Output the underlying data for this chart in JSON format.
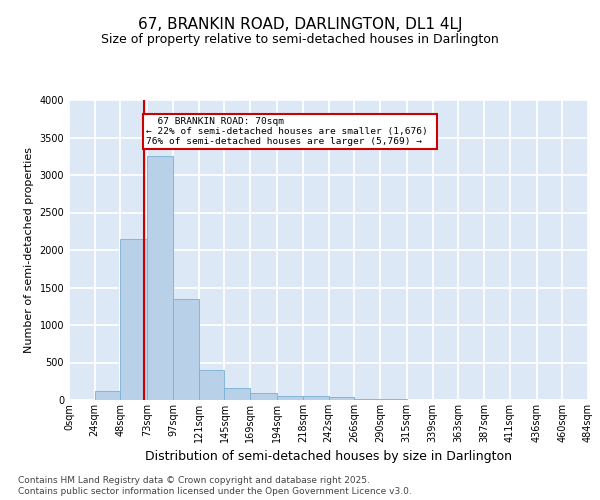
{
  "title": "67, BRANKIN ROAD, DARLINGTON, DL1 4LJ",
  "subtitle": "Size of property relative to semi-detached houses in Darlington",
  "xlabel": "Distribution of semi-detached houses by size in Darlington",
  "ylabel": "Number of semi-detached properties",
  "annotation_line1": "67 BRANKIN ROAD: 70sqm",
  "annotation_line2": "← 22% of semi-detached houses are smaller (1,676)",
  "annotation_line3": "76% of semi-detached houses are larger (5,769) →",
  "footer_line1": "Contains HM Land Registry data © Crown copyright and database right 2025.",
  "footer_line2": "Contains public sector information licensed under the Open Government Licence v3.0.",
  "bin_labels": [
    "0sqm",
    "24sqm",
    "48sqm",
    "73sqm",
    "97sqm",
    "121sqm",
    "145sqm",
    "169sqm",
    "194sqm",
    "218sqm",
    "242sqm",
    "266sqm",
    "290sqm",
    "315sqm",
    "339sqm",
    "363sqm",
    "387sqm",
    "411sqm",
    "436sqm",
    "460sqm",
    "484sqm"
  ],
  "bin_edges": [
    0,
    24,
    48,
    73,
    97,
    121,
    145,
    169,
    194,
    218,
    242,
    266,
    290,
    315,
    339,
    363,
    387,
    411,
    436,
    460,
    484
  ],
  "values": [
    0,
    120,
    2150,
    3250,
    1350,
    400,
    160,
    95,
    60,
    50,
    40,
    15,
    10,
    5,
    3,
    2,
    1,
    1,
    0,
    0
  ],
  "bar_color": "#b8d0e8",
  "bar_edge_color": "#7aafd4",
  "red_line_x": 70,
  "ylim": [
    0,
    4000
  ],
  "yticks": [
    0,
    500,
    1000,
    1500,
    2000,
    2500,
    3000,
    3500,
    4000
  ],
  "bg_color": "#dce8f5",
  "grid_color": "#ffffff",
  "fig_bg_color": "#ffffff",
  "annotation_box_facecolor": "#ffffff",
  "annotation_box_edgecolor": "#cc0000",
  "red_line_color": "#cc0000",
  "title_fontsize": 11,
  "subtitle_fontsize": 9,
  "ylabel_fontsize": 8,
  "xlabel_fontsize": 9,
  "tick_fontsize": 7,
  "footer_fontsize": 6.5
}
